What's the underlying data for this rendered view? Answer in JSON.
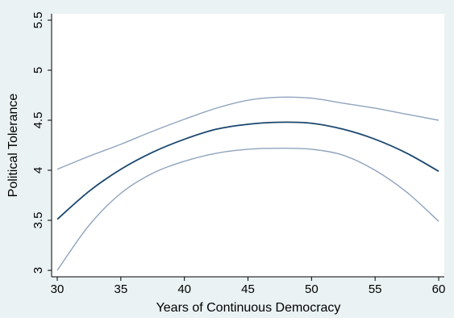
{
  "colors": {
    "background": "#eaf2f3",
    "plot_area": "#ffffff",
    "fit_line": "#1a476f",
    "ci_lines": "#8fa4bd",
    "axis": "#000000"
  },
  "chart_data": {
    "type": "line",
    "title": "",
    "xlabel": "Years of Continuous Democracy",
    "ylabel": "Political Tolerance",
    "xlim": [
      30,
      60
    ],
    "ylim": [
      3,
      5.5
    ],
    "x_ticks": [
      "30",
      "35",
      "40",
      "45",
      "50",
      "55",
      "60"
    ],
    "y_ticks": [
      "3",
      "3.5",
      "4",
      "4.5",
      "5",
      "5.5"
    ],
    "grid": false,
    "legend": "none",
    "x": [
      30,
      32.5,
      35,
      37.5,
      40,
      42.5,
      45,
      47.5,
      50,
      52.5,
      55,
      57.5,
      60
    ],
    "series": [
      {
        "values": [
          4.01,
          4.14,
          4.26,
          4.39,
          4.51,
          4.62,
          4.7,
          4.73,
          4.72,
          4.67,
          4.62,
          4.56,
          4.5
        ]
      },
      {
        "values": [
          3.51,
          3.79,
          4.01,
          4.18,
          4.31,
          4.41,
          4.46,
          4.48,
          4.47,
          4.41,
          4.31,
          4.17,
          3.99
        ]
      },
      {
        "values": [
          3.0,
          3.45,
          3.77,
          3.97,
          4.09,
          4.17,
          4.21,
          4.22,
          4.21,
          4.15,
          4.0,
          3.78,
          3.49
        ]
      }
    ]
  }
}
